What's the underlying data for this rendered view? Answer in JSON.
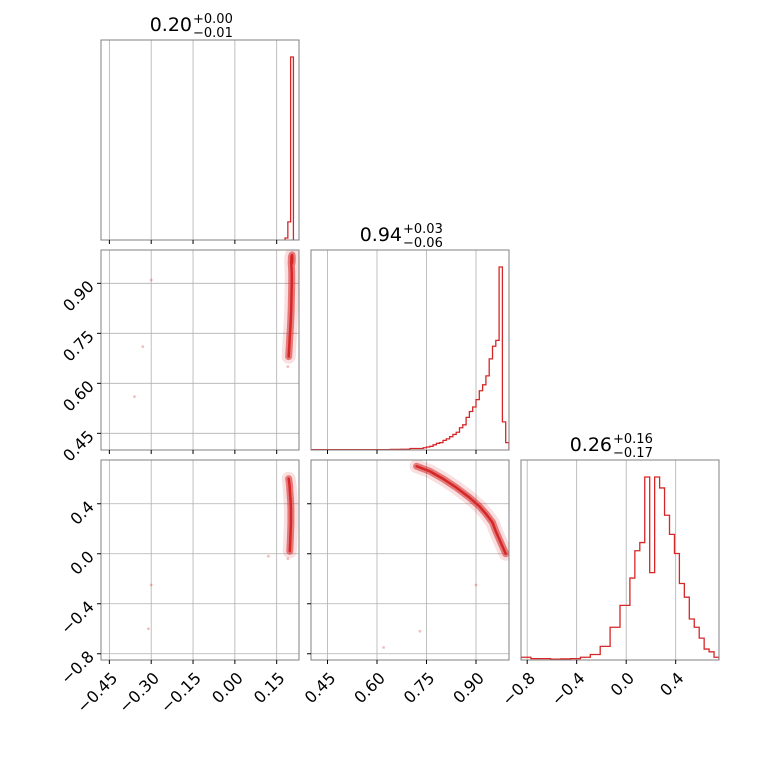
{
  "style": {
    "color": "#d62728",
    "grid_color": "#b0b0b0",
    "frame_color": "#808080"
  },
  "chart_data": {
    "type": "corner",
    "grid": true,
    "params": [
      {
        "range": [
          -0.48,
          0.23
        ],
        "ticks": [
          -0.45,
          -0.3,
          -0.15,
          0.0,
          0.15
        ],
        "tick_labels": [
          "−0.45",
          "−0.30",
          "−0.15",
          "0.00",
          "0.15"
        ]
      },
      {
        "range": [
          0.4,
          1.0
        ],
        "ticks": [
          0.45,
          0.6,
          0.75,
          0.9
        ],
        "tick_labels": [
          "0.45",
          "0.60",
          "0.75",
          "0.90"
        ]
      },
      {
        "range": [
          -0.85,
          0.75
        ],
        "ticks": [
          -0.8,
          -0.4,
          0.0,
          0.4
        ],
        "tick_labels": [
          "−0.8",
          "−0.4",
          "0.0",
          "0.4"
        ]
      }
    ],
    "titles": [
      {
        "value": "0.20",
        "plus": "+0.00",
        "minus": "−0.01"
      },
      {
        "value": "0.94",
        "plus": "+0.03",
        "minus": "−0.06"
      },
      {
        "value": "0.26",
        "plus": "+0.16",
        "minus": "−0.17"
      }
    ],
    "hist1d": [
      {
        "edges": [
          0.18,
          0.19,
          0.2,
          0.21
        ],
        "counts": [
          0.01,
          0.09,
          0.91
        ]
      },
      {
        "edges": [
          0.4,
          0.64,
          0.67,
          0.7,
          0.73,
          0.74,
          0.75,
          0.76,
          0.77,
          0.78,
          0.79,
          0.8,
          0.81,
          0.82,
          0.83,
          0.84,
          0.85,
          0.86,
          0.87,
          0.88,
          0.89,
          0.9,
          0.91,
          0.92,
          0.93,
          0.94,
          0.95,
          0.96,
          0.97,
          0.98,
          0.99,
          1.0
        ],
        "counts": [
          0.005,
          0.008,
          0.01,
          0.02,
          0.02,
          0.03,
          0.04,
          0.05,
          0.07,
          0.09,
          0.1,
          0.13,
          0.15,
          0.18,
          0.21,
          0.24,
          0.3,
          0.34,
          0.44,
          0.52,
          0.58,
          0.68,
          0.8,
          0.88,
          1.0,
          1.23,
          1.4,
          1.48,
          2.47,
          0.38,
          0.1
        ]
      },
      {
        "edges": [
          -0.85,
          -0.77,
          -0.69,
          -0.61,
          -0.53,
          -0.45,
          -0.37,
          -0.29,
          -0.21,
          -0.13,
          -0.05,
          0.03,
          0.07,
          0.11,
          0.15,
          0.19,
          0.23,
          0.27,
          0.31,
          0.35,
          0.39,
          0.43,
          0.47,
          0.51,
          0.55,
          0.59,
          0.63,
          0.67,
          0.71,
          0.75
        ],
        "counts": [
          0.01,
          0.005,
          0.005,
          0.003,
          0.004,
          0.005,
          0.01,
          0.02,
          0.05,
          0.12,
          0.2,
          0.3,
          0.4,
          0.43,
          0.67,
          0.32,
          0.67,
          0.63,
          0.53,
          0.46,
          0.39,
          0.28,
          0.23,
          0.15,
          0.12,
          0.08,
          0.04,
          0.03,
          0.01
        ]
      }
    ],
    "density2d": {
      "1_0": {
        "curve_x": [
          0.193,
          0.197,
          0.2,
          0.202,
          0.203,
          0.204,
          0.204,
          0.203,
          0.202,
          0.203,
          0.205,
          0.206,
          0.205,
          0.203
        ],
        "curve_y": [
          0.68,
          0.74,
          0.78,
          0.82,
          0.86,
          0.9,
          0.93,
          0.95,
          0.96,
          0.98,
          0.985,
          0.975,
          0.96,
          0.97
        ],
        "outliers": [
          [
            -0.3,
            0.91
          ],
          [
            -0.33,
            0.71
          ],
          [
            -0.36,
            0.56
          ],
          [
            0.19,
            0.65
          ]
        ]
      },
      "2_0": {
        "curve_x": [
          0.193,
          0.196,
          0.198,
          0.2,
          0.201,
          0.201,
          0.201,
          0.2,
          0.199,
          0.198,
          0.197
        ],
        "curve_y": [
          0.6,
          0.55,
          0.48,
          0.42,
          0.36,
          0.3,
          0.24,
          0.18,
          0.12,
          0.07,
          0.02
        ],
        "outliers": [
          [
            0.19,
            -0.04
          ],
          [
            -0.3,
            -0.25
          ],
          [
            -0.31,
            -0.6
          ],
          [
            0.12,
            -0.02
          ]
        ]
      },
      "2_1": {
        "curve_x": [
          0.72,
          0.76,
          0.8,
          0.84,
          0.88,
          0.91,
          0.93,
          0.95,
          0.96,
          0.97,
          0.98,
          0.99
        ],
        "curve_y": [
          0.7,
          0.66,
          0.6,
          0.53,
          0.45,
          0.38,
          0.32,
          0.25,
          0.18,
          0.12,
          0.06,
          0.0
        ],
        "outliers": [
          [
            0.9,
            -0.25
          ],
          [
            0.73,
            -0.62
          ],
          [
            0.62,
            -0.75
          ]
        ]
      }
    }
  }
}
